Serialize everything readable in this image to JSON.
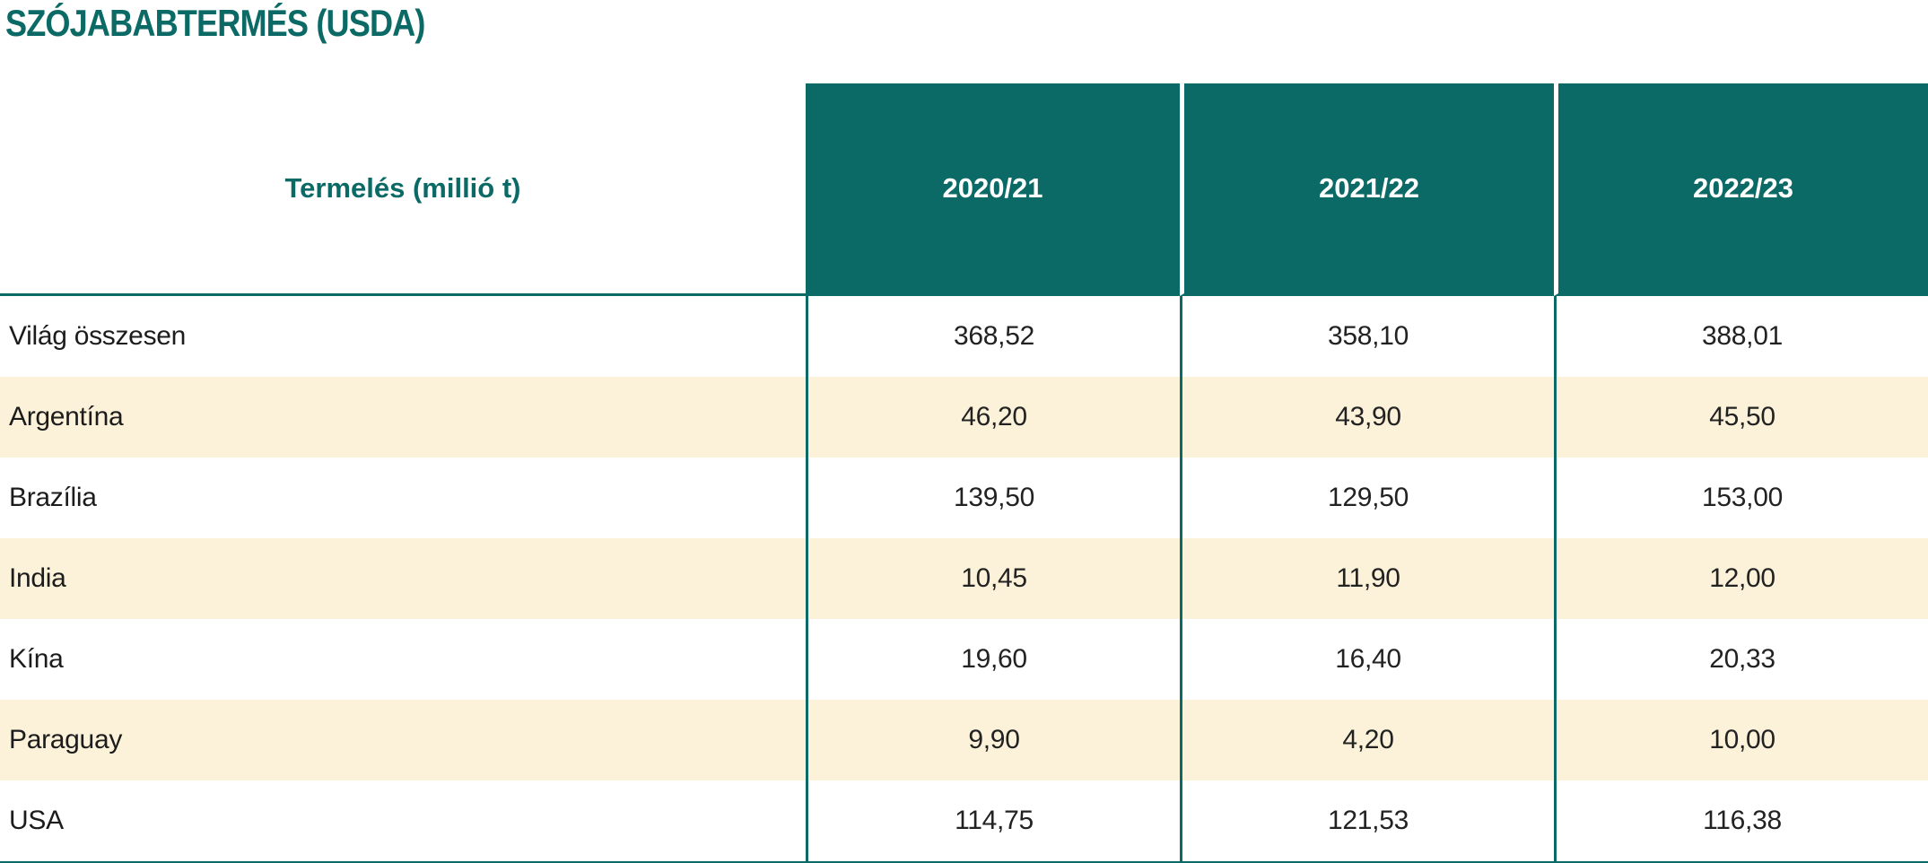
{
  "title": "SZÓJABABTERMÉS (USDA)",
  "colors": {
    "accent_teal": "#0B6A66",
    "row_cream": "#FCF2D9",
    "row_white": "#FFFFFF",
    "header_text": "#FFFFFF",
    "body_text": "#222222"
  },
  "table": {
    "header": {
      "label": "Termelés (millió t)",
      "years": [
        "2020/21",
        "2021/22",
        "2022/23"
      ]
    },
    "rows": [
      {
        "label": "Világ összesen",
        "values": [
          "368,52",
          "358,10",
          "388,01"
        ]
      },
      {
        "label": "Argentína",
        "values": [
          "46,20",
          "43,90",
          "45,50"
        ]
      },
      {
        "label": "Brazília",
        "values": [
          "139,50",
          "129,50",
          "153,00"
        ]
      },
      {
        "label": "India",
        "values": [
          "10,45",
          "11,90",
          "12,00"
        ]
      },
      {
        "label": "Kína",
        "values": [
          "19,60",
          "16,40",
          "20,33"
        ]
      },
      {
        "label": "Paraguay",
        "values": [
          "9,90",
          "4,20",
          "10,00"
        ]
      },
      {
        "label": "USA",
        "values": [
          "114,75",
          "121,53",
          "116,38"
        ]
      }
    ]
  },
  "chart_data": {
    "type": "table",
    "title": "SZÓJABABTERMÉS (USDA)",
    "unit_label": "Termelés (millió t)",
    "categories": [
      "2020/21",
      "2021/22",
      "2022/23"
    ],
    "series": [
      {
        "name": "Világ összesen",
        "values": [
          368.52,
          358.1,
          388.01
        ]
      },
      {
        "name": "Argentína",
        "values": [
          46.2,
          43.9,
          45.5
        ]
      },
      {
        "name": "Brazília",
        "values": [
          139.5,
          129.5,
          153.0
        ]
      },
      {
        "name": "India",
        "values": [
          10.45,
          11.9,
          12.0
        ]
      },
      {
        "name": "Kína",
        "values": [
          19.6,
          16.4,
          20.33
        ]
      },
      {
        "name": "Paraguay",
        "values": [
          9.9,
          4.2,
          10.0
        ]
      },
      {
        "name": "USA",
        "values": [
          114.75,
          121.53,
          116.38
        ]
      }
    ]
  }
}
